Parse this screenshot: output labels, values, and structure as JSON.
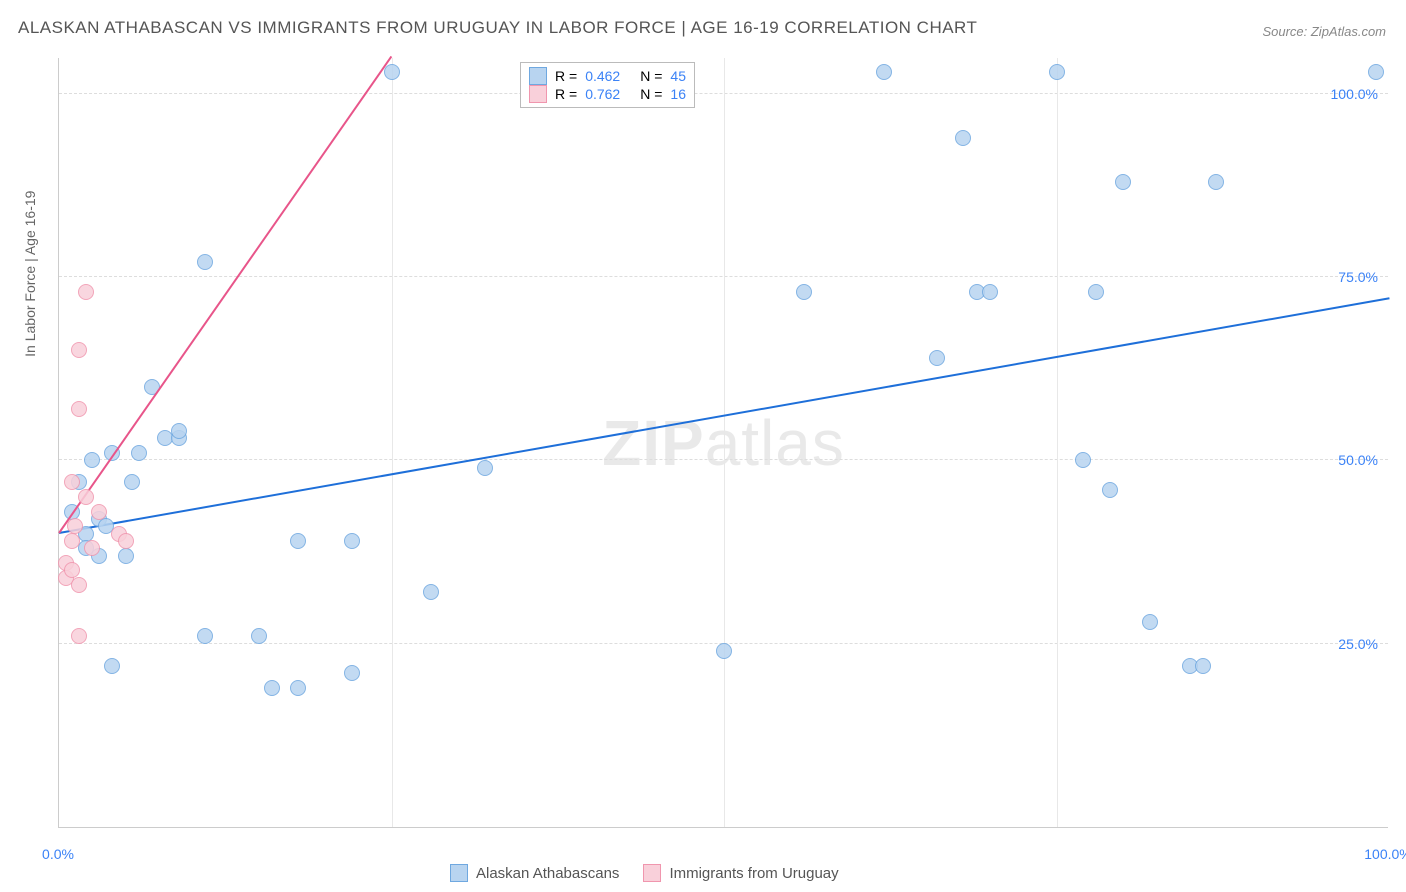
{
  "title": "ALASKAN ATHABASCAN VS IMMIGRANTS FROM URUGUAY IN LABOR FORCE | AGE 16-19 CORRELATION CHART",
  "source": "Source: ZipAtlas.com",
  "yaxis_label": "In Labor Force | Age 16-19",
  "watermark_zip": "ZIP",
  "watermark_atlas": "atlas",
  "chart": {
    "type": "scatter",
    "xlim": [
      0,
      100
    ],
    "ylim": [
      0,
      105
    ],
    "background_color": "#ffffff",
    "grid_color": "#dddddd",
    "yticks": [
      {
        "value": 25,
        "label": "25.0%"
      },
      {
        "value": 50,
        "label": "50.0%"
      },
      {
        "value": 75,
        "label": "75.0%"
      },
      {
        "value": 100,
        "label": "100.0%"
      }
    ],
    "xgrid": [
      25,
      50,
      75
    ],
    "xticks": [
      {
        "value": 0,
        "label": "0.0%"
      },
      {
        "value": 100,
        "label": "100.0%"
      }
    ],
    "xtick_color": "#3b82f6",
    "ytick_color": "#3b82f6",
    "marker_radius": 8,
    "series": [
      {
        "name": "Alaskan Athabascans",
        "color_fill": "#b8d4f0",
        "color_stroke": "#6fa8e0",
        "r_value": "0.462",
        "n_value": "45",
        "trend": {
          "x1": 0,
          "y1": 40,
          "x2": 100,
          "y2": 72,
          "color": "#1e6fd9",
          "width": 2
        },
        "points": [
          {
            "x": 1,
            "y": 43
          },
          {
            "x": 1.5,
            "y": 47
          },
          {
            "x": 2,
            "y": 40
          },
          {
            "x": 2,
            "y": 38
          },
          {
            "x": 2.5,
            "y": 50
          },
          {
            "x": 3,
            "y": 42
          },
          {
            "x": 3,
            "y": 37
          },
          {
            "x": 3.5,
            "y": 41
          },
          {
            "x": 4,
            "y": 22
          },
          {
            "x": 4,
            "y": 51
          },
          {
            "x": 5,
            "y": 37
          },
          {
            "x": 5.5,
            "y": 47
          },
          {
            "x": 6,
            "y": 51
          },
          {
            "x": 7,
            "y": 60
          },
          {
            "x": 8,
            "y": 53
          },
          {
            "x": 9,
            "y": 53
          },
          {
            "x": 9,
            "y": 54
          },
          {
            "x": 11,
            "y": 77
          },
          {
            "x": 11,
            "y": 26
          },
          {
            "x": 15,
            "y": 26
          },
          {
            "x": 16,
            "y": 19
          },
          {
            "x": 18,
            "y": 19
          },
          {
            "x": 18,
            "y": 39
          },
          {
            "x": 22,
            "y": 21
          },
          {
            "x": 22,
            "y": 39
          },
          {
            "x": 25,
            "y": 103
          },
          {
            "x": 28,
            "y": 32
          },
          {
            "x": 32,
            "y": 49
          },
          {
            "x": 50,
            "y": 24
          },
          {
            "x": 56,
            "y": 73
          },
          {
            "x": 62,
            "y": 103
          },
          {
            "x": 66,
            "y": 64
          },
          {
            "x": 68,
            "y": 94
          },
          {
            "x": 69,
            "y": 73
          },
          {
            "x": 70,
            "y": 73
          },
          {
            "x": 75,
            "y": 103
          },
          {
            "x": 77,
            "y": 50
          },
          {
            "x": 78,
            "y": 73
          },
          {
            "x": 79,
            "y": 46
          },
          {
            "x": 80,
            "y": 88
          },
          {
            "x": 82,
            "y": 28
          },
          {
            "x": 85,
            "y": 22
          },
          {
            "x": 86,
            "y": 22
          },
          {
            "x": 87,
            "y": 88
          },
          {
            "x": 99,
            "y": 103
          }
        ]
      },
      {
        "name": "Immigrants from Uruguay",
        "color_fill": "#f9d0da",
        "color_stroke": "#f096ae",
        "r_value": "0.762",
        "n_value": "16",
        "trend": {
          "x1": 0,
          "y1": 40,
          "x2": 25,
          "y2": 105,
          "color": "#e8558a",
          "width": 2
        },
        "points": [
          {
            "x": 0.5,
            "y": 34
          },
          {
            "x": 0.5,
            "y": 36
          },
          {
            "x": 1,
            "y": 35
          },
          {
            "x": 1,
            "y": 39
          },
          {
            "x": 1,
            "y": 47
          },
          {
            "x": 1.2,
            "y": 41
          },
          {
            "x": 1.5,
            "y": 33
          },
          {
            "x": 1.5,
            "y": 57
          },
          {
            "x": 1.5,
            "y": 65
          },
          {
            "x": 1.5,
            "y": 26
          },
          {
            "x": 2,
            "y": 45
          },
          {
            "x": 2,
            "y": 73
          },
          {
            "x": 2.5,
            "y": 38
          },
          {
            "x": 3,
            "y": 43
          },
          {
            "x": 4.5,
            "y": 40
          },
          {
            "x": 5,
            "y": 39
          }
        ]
      }
    ],
    "legend_labels": {
      "r_prefix": "R = ",
      "n_prefix": "N = "
    }
  }
}
